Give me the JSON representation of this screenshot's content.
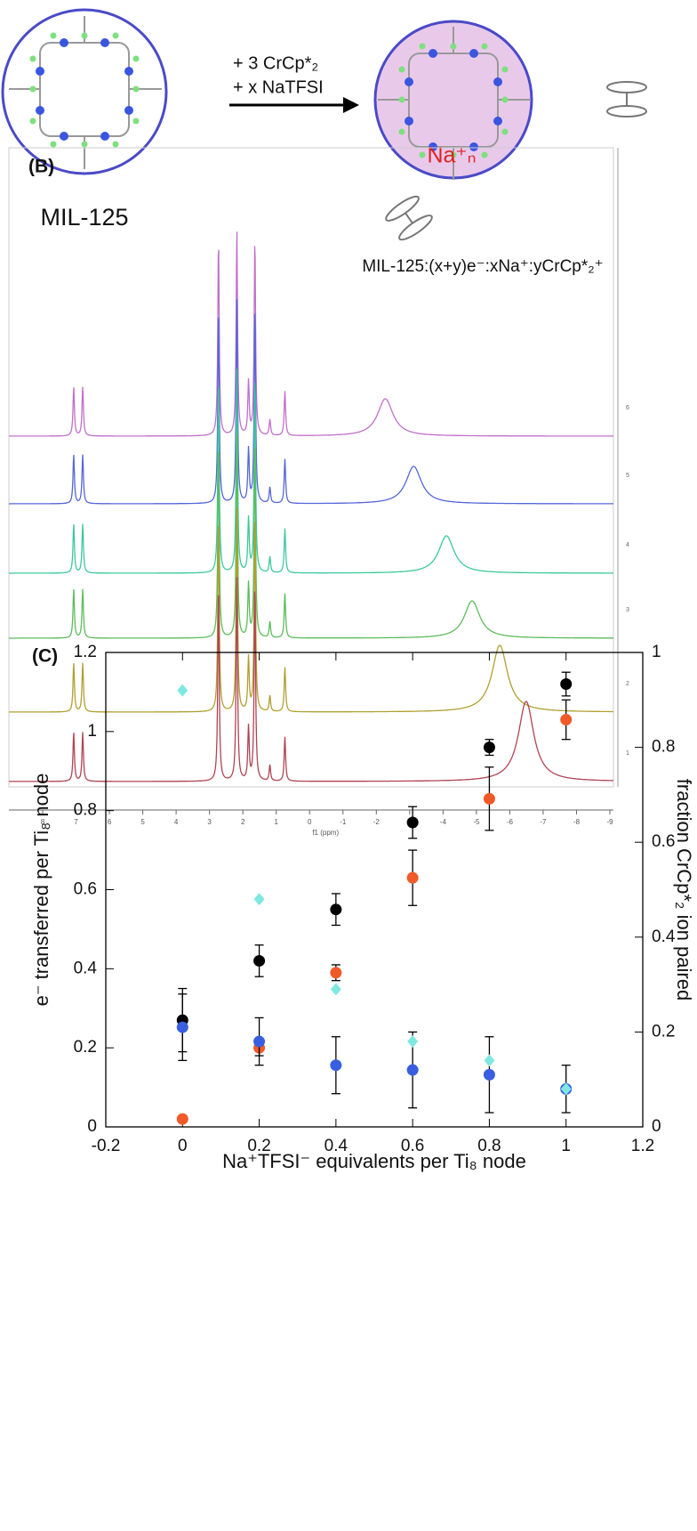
{
  "scheme": {
    "left_label": "MIL-125",
    "reagent_1": "+ 3 CrCp*₂",
    "reagent_2": "+ x NaTFSI",
    "cation": "Na⁺ₙ",
    "product": "MIL-125:(x+y)e⁻:xNa⁺:yCrCp*₂⁺"
  },
  "chart_data": [
    {
      "type": "spectra",
      "title": "(B)",
      "xlabel": "f1 (ppm)",
      "xlim": [
        8,
        -9
      ],
      "xticks": [
        8,
        7,
        6,
        5,
        4,
        3,
        2,
        1,
        0,
        -1,
        -2,
        -3,
        -4,
        -5,
        -6,
        -7,
        -8,
        -9
      ],
      "peaks": [
        7.07,
        6.8,
        2.73,
        2.18,
        1.83,
        1.64,
        1.19,
        0.74
      ],
      "traces": [
        {
          "label": 6,
          "color": "#c070c8",
          "broad_peak": -2.27
        },
        {
          "label": 5,
          "color": "#5566d8",
          "broad_peak": -3.12
        },
        {
          "label": 4,
          "color": "#3cc89c",
          "broad_peak": -4.1
        },
        {
          "label": 3,
          "color": "#5cbc5c",
          "broad_peak": -4.87
        },
        {
          "label": 2,
          "color": "#b0a030",
          "broad_peak": -5.7
        },
        {
          "label": 1,
          "color": "#b04454",
          "broad_peak": -6.49
        }
      ]
    },
    {
      "type": "scatter",
      "title": "(C)",
      "xlabel": "Na⁺TFSI⁻ equivalents per Ti₈ node",
      "ylabel": "e⁻ transferred per Ti₈ node",
      "y2label": "fraction CrCp*₂ ion paired",
      "xlim": [
        -0.2,
        1.2
      ],
      "xticks": [
        -0.2,
        0,
        0.2,
        0.4,
        0.6,
        0.8,
        1,
        1.2
      ],
      "ylim": [
        0,
        1.2
      ],
      "yticks": [
        0,
        0.2,
        0.4,
        0.6,
        0.8,
        1,
        1.2
      ],
      "y2lim": [
        0,
        1
      ],
      "y2ticks": [
        0,
        0.2,
        0.4,
        0.6,
        0.8,
        1
      ],
      "x": [
        0,
        0.2,
        0.4,
        0.6,
        0.8,
        1
      ],
      "series": [
        {
          "color": "#000000",
          "marker": "circle",
          "values": [
            0.27,
            0.42,
            0.55,
            0.77,
            0.96,
            1.12
          ],
          "errors": [
            0.08,
            0.04,
            0.04,
            0.04,
            0.02,
            0.03
          ]
        },
        {
          "color": "#f05a28",
          "marker": "circle",
          "values": [
            0.02,
            0.2,
            0.39,
            0.63,
            0.83,
            1.03
          ],
          "errors": [
            0,
            0.02,
            0.02,
            0.07,
            0.08,
            0.05
          ]
        },
        {
          "color": "#3a5ee0",
          "marker": "circle",
          "axis": "y2",
          "values": [
            0.21,
            0.18,
            0.13,
            0.12,
            0.11,
            0.08
          ],
          "errors": [
            0.07,
            0.05,
            0.06,
            0.08,
            0.08,
            0.05
          ]
        },
        {
          "color": "#7fe8e0",
          "marker": "diamond",
          "axis": "y2",
          "values": [
            0.92,
            0.48,
            0.29,
            0.18,
            0.14,
            0.08
          ]
        }
      ]
    }
  ]
}
